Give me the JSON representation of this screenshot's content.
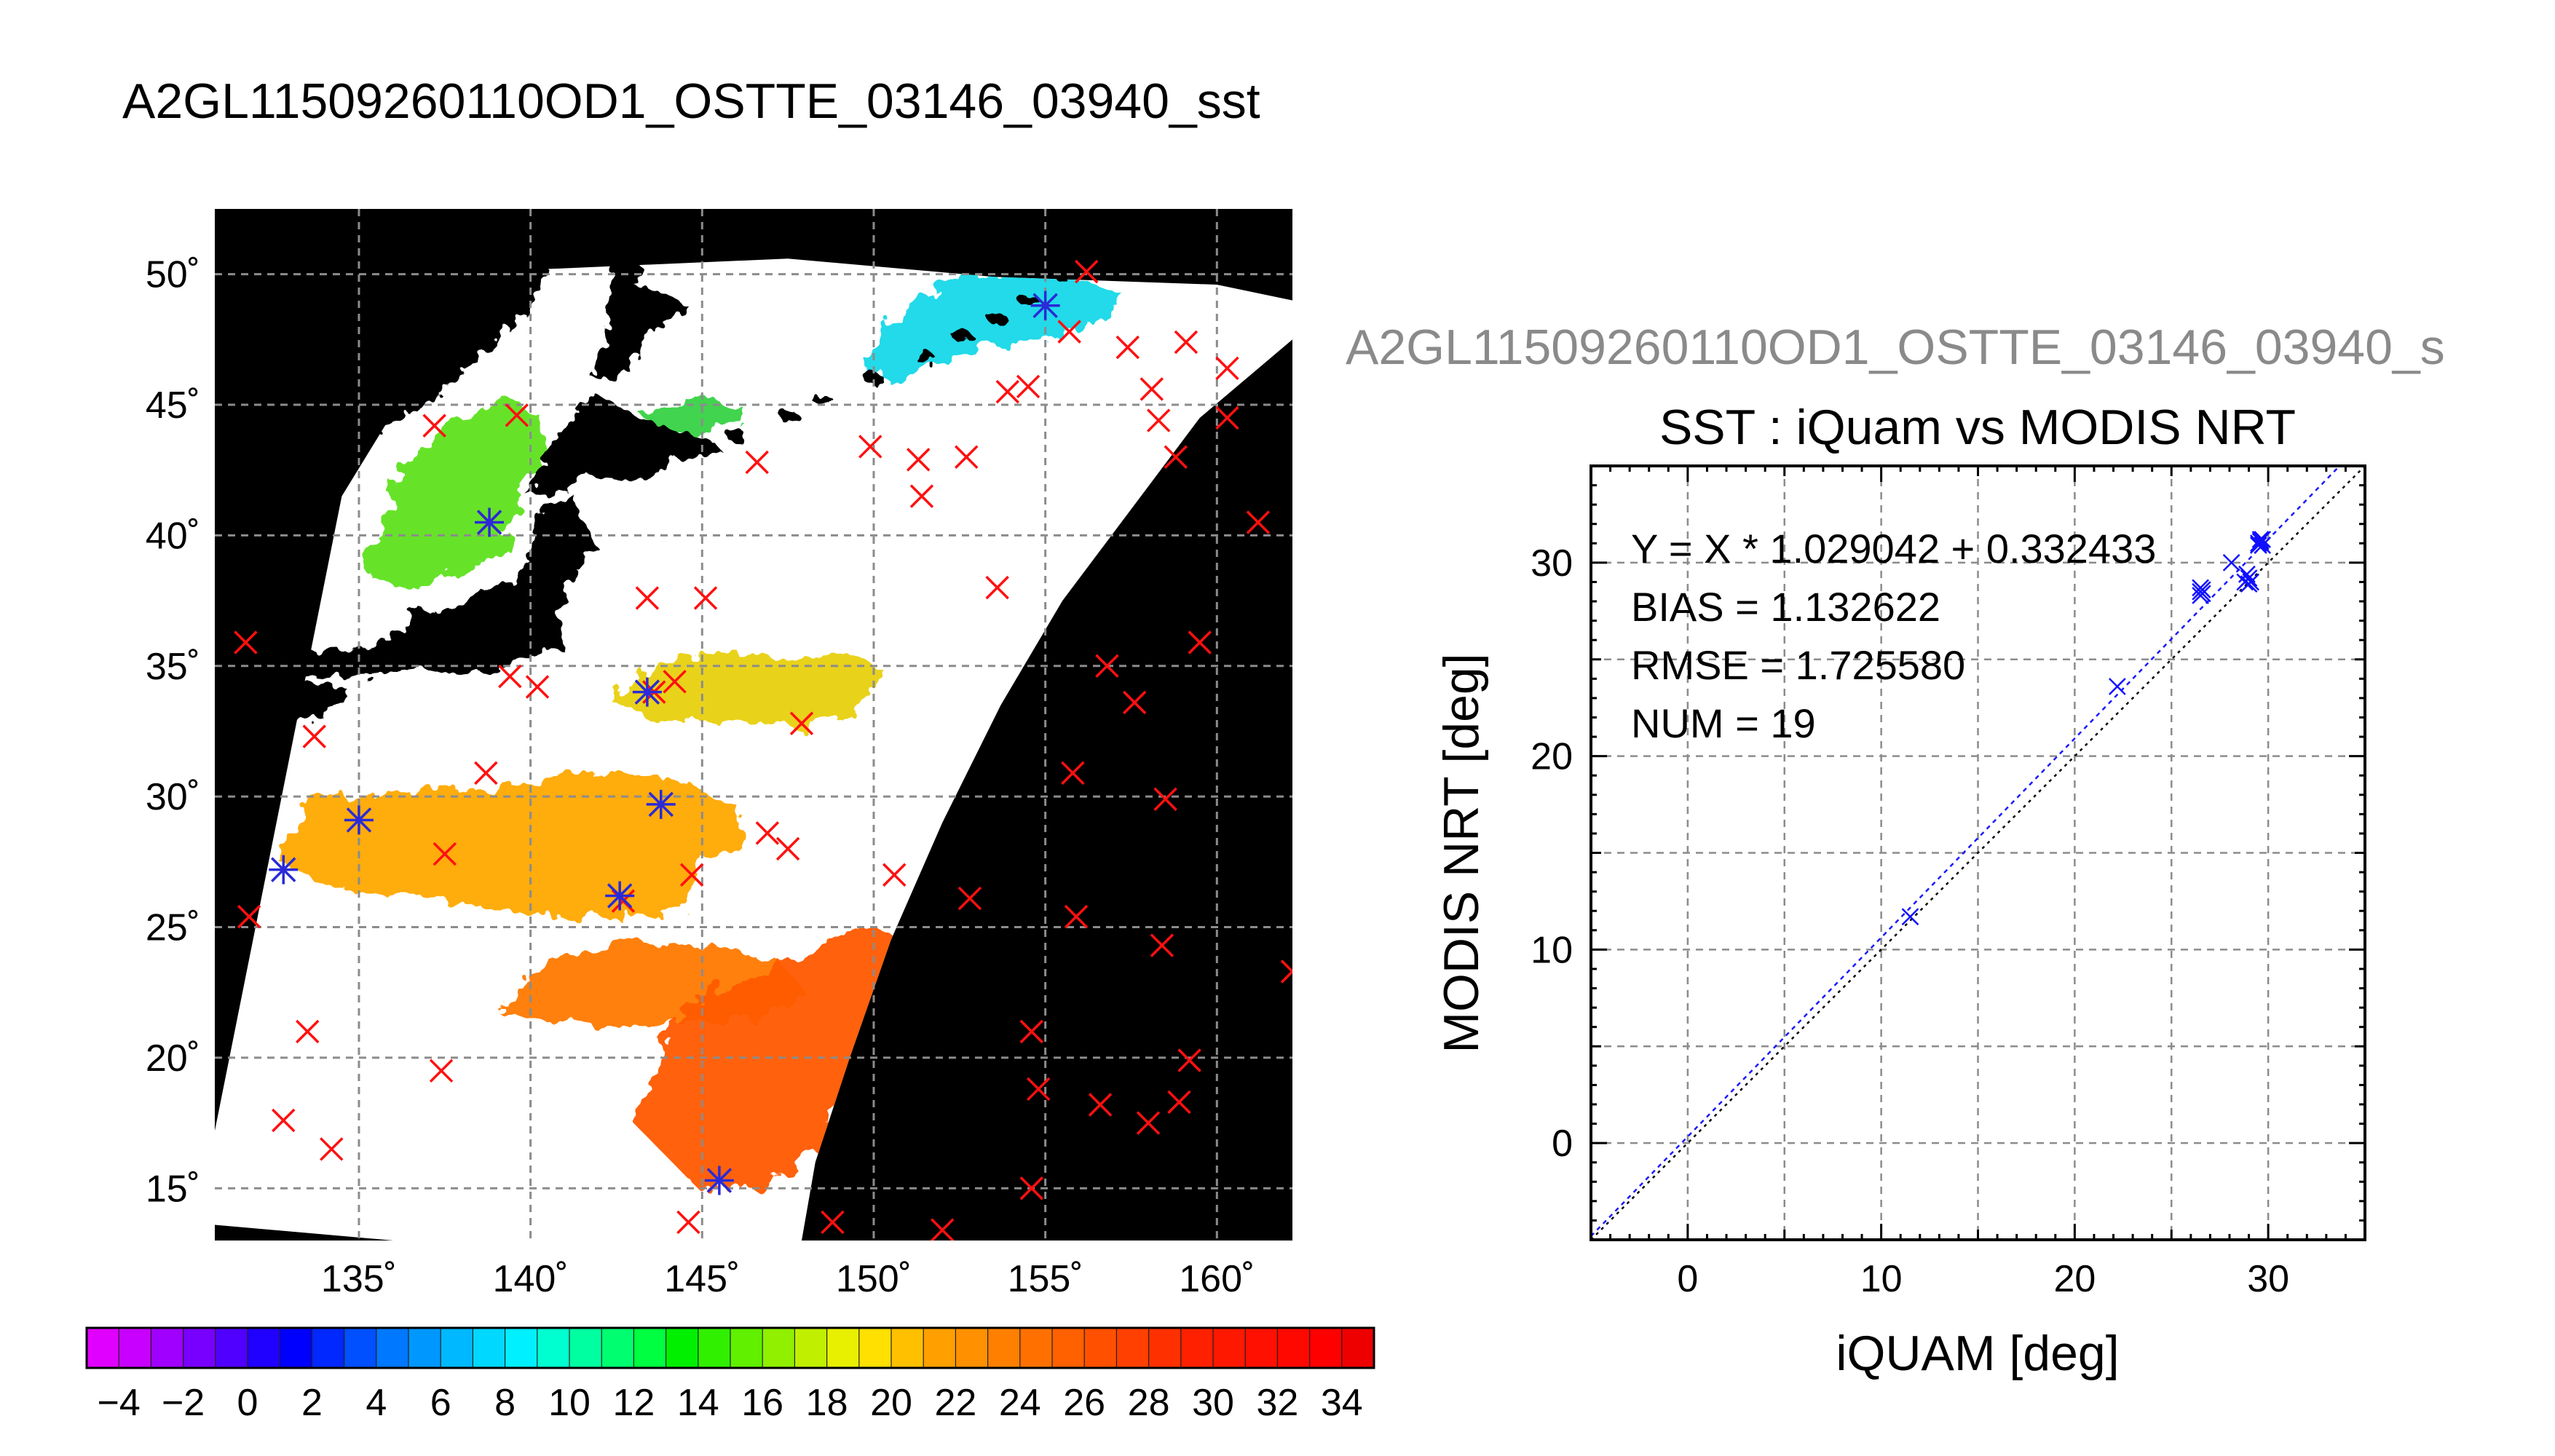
{
  "figure": {
    "main_title": "A2GL11509260110OD1_OSTTE_03146_03940_sst",
    "secondary_title": "A2GL11509260110OD1_OSTTE_03146_03940_s"
  },
  "chart_data": [
    {
      "type": "heatmap",
      "subtype": "map",
      "x_ticks": [
        "135˚",
        "140˚",
        "145˚",
        "150˚",
        "155˚",
        "160˚"
      ],
      "x_tick_values": [
        135,
        140,
        145,
        150,
        155,
        160
      ],
      "y_ticks": [
        "15˚",
        "20˚",
        "25˚",
        "30˚",
        "35˚",
        "40˚",
        "45˚",
        "50˚"
      ],
      "y_tick_values": [
        15,
        20,
        25,
        30,
        35,
        40,
        45,
        50
      ],
      "xlim": [
        130.8,
        162.2
      ],
      "ylim": [
        13,
        52.5
      ],
      "grid": true,
      "colorbar": {
        "range": [
          -5,
          35
        ],
        "tick_labels": [
          "-4",
          "-2",
          "0",
          "2",
          "4",
          "6",
          "8",
          "10",
          "12",
          "14",
          "16",
          "18",
          "20",
          "22",
          "24",
          "26",
          "28",
          "30",
          "32",
          "34"
        ],
        "colors": [
          "#e000ff",
          "#c800ff",
          "#a000ff",
          "#7800ff",
          "#5000ff",
          "#2000ff",
          "#0000ff",
          "#0028ff",
          "#0050ff",
          "#0078ff",
          "#0098ff",
          "#00b8ff",
          "#00d8ff",
          "#00f0ff",
          "#00ffd0",
          "#00ffa0",
          "#00ff70",
          "#00ff40",
          "#00f000",
          "#30f000",
          "#60f000",
          "#90f000",
          "#c0f000",
          "#e8f000",
          "#ffe000",
          "#ffc000",
          "#ffa000",
          "#ff9000",
          "#ff8000",
          "#ff7000",
          "#ff6000",
          "#ff5000",
          "#ff4000",
          "#ff3000",
          "#ff2000",
          "#ff1800",
          "#ff1000",
          "#ff0800",
          "#ff0000",
          "#ee0000"
        ]
      },
      "buoys_red": [
        [
          131.7,
          35.9
        ],
        [
          131.8,
          25.4
        ],
        [
          133.7,
          32.3
        ],
        [
          133.5,
          21
        ],
        [
          132.8,
          17.6
        ],
        [
          134.2,
          16.5
        ],
        [
          137.2,
          44.2
        ],
        [
          139.6,
          44.6
        ],
        [
          138.8,
          40.5
        ],
        [
          137.5,
          27.8
        ],
        [
          137.4,
          19.5
        ],
        [
          138.7,
          30.9
        ],
        [
          139.4,
          34.6
        ],
        [
          140.2,
          34.2
        ],
        [
          142.7,
          26
        ],
        [
          143.4,
          37.6
        ],
        [
          143.6,
          34
        ],
        [
          144.2,
          34.4
        ],
        [
          144.7,
          27
        ],
        [
          145.1,
          37.6
        ],
        [
          144.6,
          13.7
        ],
        [
          146.6,
          42.8
        ],
        [
          146.9,
          28.6
        ],
        [
          147.5,
          28
        ],
        [
          147.9,
          32.8
        ],
        [
          148.8,
          13.7
        ],
        [
          149.9,
          43.4
        ],
        [
          150.6,
          27
        ],
        [
          151.3,
          42.9
        ],
        [
          151.4,
          41.5
        ],
        [
          152,
          13.4
        ],
        [
          152.7,
          43
        ],
        [
          152.8,
          26.1
        ],
        [
          153.6,
          38
        ],
        [
          153.9,
          45.5
        ],
        [
          154.5,
          45.7
        ],
        [
          154.6,
          21
        ],
        [
          154.8,
          18.8
        ],
        [
          154.6,
          15
        ],
        [
          155.7,
          47.8
        ],
        [
          155.8,
          30.9
        ],
        [
          155.9,
          25.4
        ],
        [
          156.2,
          50.1
        ],
        [
          156.6,
          18.2
        ],
        [
          156.8,
          35
        ],
        [
          157.4,
          47.2
        ],
        [
          157.6,
          33.6
        ],
        [
          158,
          17.5
        ],
        [
          158.1,
          45.6
        ],
        [
          158.3,
          44.4
        ],
        [
          158.5,
          29.9
        ],
        [
          158.4,
          24.3
        ],
        [
          158.8,
          43
        ],
        [
          158.9,
          18.3
        ],
        [
          159.1,
          47.4
        ],
        [
          159.2,
          19.9
        ],
        [
          159.5,
          35.9
        ],
        [
          160.3,
          46.4
        ],
        [
          160.3,
          44.5
        ],
        [
          161.2,
          40.5
        ],
        [
          162.2,
          23.3
        ]
      ],
      "matchups_blue": [
        [
          132.8,
          27.2
        ],
        [
          135,
          29.1
        ],
        [
          138.8,
          40.5
        ],
        [
          142.6,
          26.2
        ],
        [
          143.4,
          34
        ],
        [
          143.8,
          29.7
        ],
        [
          145.5,
          15.3
        ],
        [
          155,
          48.8
        ]
      ]
    },
    {
      "type": "scatter",
      "title": "SST : iQuam vs MODIS NRT",
      "xlabel": "iQUAM [deg]",
      "ylabel": "MODIS NRT [deg]",
      "xlim": [
        -5,
        35
      ],
      "ylim": [
        -5,
        35
      ],
      "x_ticks": [
        0,
        10,
        20,
        30
      ],
      "y_ticks": [
        0,
        10,
        20,
        30
      ],
      "grid": true,
      "annotations": [
        "Y = X * 1.029042 + 0.332433",
        "BIAS = 1.132622",
        "RMSE = 1.725580",
        "NUM = 19"
      ],
      "fit": {
        "slope": 1.029042,
        "intercept": 0.332433
      },
      "points": [
        {
          "x": 11.5,
          "y": 11.7
        },
        {
          "x": 22.2,
          "y": 23.6
        },
        {
          "x": 26.5,
          "y": 28.3
        },
        {
          "x": 26.5,
          "y": 28.5
        },
        {
          "x": 26.5,
          "y": 28.7
        },
        {
          "x": 26.6,
          "y": 28.4
        },
        {
          "x": 26.6,
          "y": 28.6
        },
        {
          "x": 28.1,
          "y": 30.0
        },
        {
          "x": 28.8,
          "y": 29.0
        },
        {
          "x": 28.9,
          "y": 29.4
        },
        {
          "x": 29.0,
          "y": 29.2
        },
        {
          "x": 29.0,
          "y": 28.9
        },
        {
          "x": 29.1,
          "y": 29.0
        },
        {
          "x": 29.5,
          "y": 31.0
        },
        {
          "x": 29.6,
          "y": 31.1
        },
        {
          "x": 29.7,
          "y": 31.2
        },
        {
          "x": 29.7,
          "y": 30.9
        },
        {
          "x": 29.6,
          "y": 31.2
        },
        {
          "x": 29.5,
          "y": 30.9
        }
      ]
    }
  ]
}
